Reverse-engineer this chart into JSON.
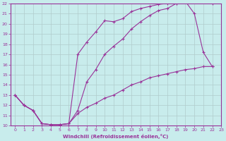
{
  "xlabel": "Windchill (Refroidissement éolien,°C)",
  "bg_color": "#c8ecec",
  "grid_color": "#b0cccc",
  "line_color": "#993399",
  "xlim": [
    -0.5,
    23
  ],
  "ylim": [
    10,
    22
  ],
  "xticks": [
    0,
    1,
    2,
    3,
    4,
    5,
    6,
    7,
    8,
    9,
    10,
    11,
    12,
    13,
    14,
    15,
    16,
    17,
    18,
    19,
    20,
    21,
    22,
    23
  ],
  "yticks": [
    10,
    11,
    12,
    13,
    14,
    15,
    16,
    17,
    18,
    19,
    20,
    21,
    22
  ],
  "curve1_x": [
    0,
    1,
    2,
    3,
    4,
    5,
    6,
    7,
    8,
    9,
    10,
    11,
    12,
    13,
    14,
    15,
    16,
    17,
    18,
    22
  ],
  "curve1_y": [
    13,
    12,
    11.5,
    10.2,
    10.1,
    10.1,
    10.2,
    17.0,
    18.2,
    19.2,
    20.3,
    20.2,
    20.5,
    21.2,
    21.5,
    21.7,
    21.9,
    22.0,
    22.0,
    22.0
  ],
  "curve2_x": [
    0,
    1,
    2,
    3,
    4,
    5,
    6,
    7,
    8,
    9,
    10,
    11,
    12,
    13,
    14,
    15,
    16,
    17,
    18,
    19,
    20,
    21,
    22
  ],
  "curve2_y": [
    13,
    12,
    11.5,
    10.2,
    10.1,
    10.1,
    10.2,
    11.5,
    14.3,
    15.5,
    17.0,
    17.8,
    18.5,
    19.5,
    20.2,
    20.8,
    21.3,
    21.5,
    22.0,
    22.2,
    21.0,
    17.2,
    15.8
  ],
  "curve3_x": [
    0,
    1,
    2,
    3,
    4,
    5,
    6,
    7,
    8,
    9,
    10,
    11,
    12,
    13,
    14,
    15,
    16,
    17,
    18,
    19,
    20,
    21,
    22
  ],
  "curve3_y": [
    13,
    12,
    11.5,
    10.2,
    10.1,
    10.1,
    10.2,
    11.2,
    11.8,
    12.2,
    12.7,
    13.0,
    13.5,
    14.0,
    14.3,
    14.7,
    14.9,
    15.1,
    15.3,
    15.5,
    15.6,
    15.8,
    15.8
  ]
}
